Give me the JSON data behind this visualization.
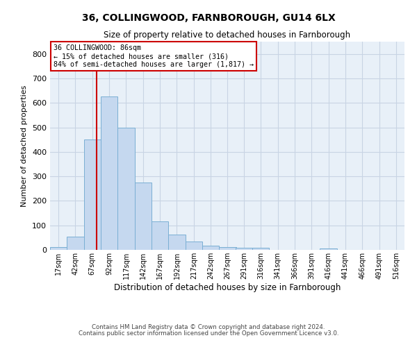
{
  "title1": "36, COLLINGWOOD, FARNBOROUGH, GU14 6LX",
  "title2": "Size of property relative to detached houses in Farnborough",
  "xlabel": "Distribution of detached houses by size in Farnborough",
  "ylabel": "Number of detached properties",
  "bar_color": "#c5d8ef",
  "bar_edge_color": "#7aafd4",
  "background_color": "#e8f0f8",
  "grid_color": "#c8d4e4",
  "annotation_box_text": "36 COLLINGWOOD: 86sqm\n← 15% of detached houses are smaller (316)\n84% of semi-detached houses are larger (1,817) →",
  "vline_x": 86,
  "vline_color": "#cc0000",
  "footer1": "Contains HM Land Registry data © Crown copyright and database right 2024.",
  "footer2": "Contains public sector information licensed under the Open Government Licence v3.0.",
  "bins_start": [
    17,
    42,
    67,
    92,
    117,
    142,
    167,
    192,
    217,
    242,
    267,
    291,
    316,
    341,
    366,
    391,
    416,
    441,
    466,
    491,
    516
  ],
  "bin_width": 25,
  "bar_heights": [
    10,
    55,
    450,
    625,
    500,
    275,
    117,
    62,
    35,
    18,
    10,
    8,
    8,
    0,
    0,
    0,
    5,
    0,
    0,
    0,
    0
  ],
  "xlim": [
    17,
    541
  ],
  "ylim": [
    0,
    850
  ],
  "yticks": [
    0,
    100,
    200,
    300,
    400,
    500,
    600,
    700,
    800
  ],
  "xtick_labels": [
    "17sqm",
    "42sqm",
    "67sqm",
    "92sqm",
    "117sqm",
    "142sqm",
    "167sqm",
    "192sqm",
    "217sqm",
    "242sqm",
    "267sqm",
    "291sqm",
    "316sqm",
    "341sqm",
    "366sqm",
    "391sqm",
    "416sqm",
    "441sqm",
    "466sqm",
    "491sqm",
    "516sqm"
  ]
}
